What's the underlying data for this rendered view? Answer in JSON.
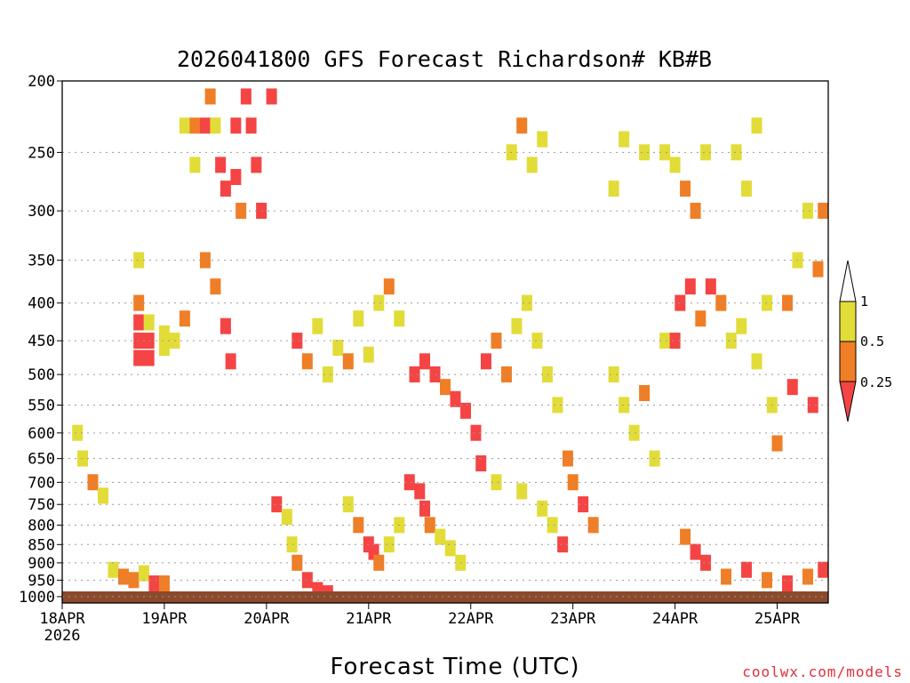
{
  "chart_data": {
    "type": "heatmap",
    "title": "2026041800 GFS Forecast Richardson# KB#B",
    "xlabel": "Forecast Time (UTC)",
    "ylabel": "",
    "credit": "coolwx.com/models",
    "x_ticks": [
      {
        "label": "18APR",
        "sub": "2026",
        "t": 0
      },
      {
        "label": "19APR",
        "t": 1
      },
      {
        "label": "20APR",
        "t": 2
      },
      {
        "label": "21APR",
        "t": 3
      },
      {
        "label": "22APR",
        "t": 4
      },
      {
        "label": "23APR",
        "t": 5
      },
      {
        "label": "24APR",
        "t": 6
      },
      {
        "label": "25APR",
        "t": 7
      }
    ],
    "xlim_days": [
      0,
      7.5
    ],
    "y_ticks": [
      200,
      250,
      300,
      350,
      400,
      450,
      500,
      550,
      600,
      650,
      700,
      750,
      800,
      850,
      900,
      950,
      1000
    ],
    "ylim_hpa": [
      200,
      1020
    ],
    "y_scale": "log-pressure",
    "grid": "dotted-horizontal",
    "legend": {
      "position": "right",
      "labels": [
        "1",
        "0.5",
        "0.25"
      ],
      "bins": [
        {
          "range": ">1",
          "color": "#ffffff"
        },
        {
          "range": "0.5-1",
          "color": "#e2dc38"
        },
        {
          "range": "0.25-0.5",
          "color": "#ef7e26"
        },
        {
          "range": "<0.25",
          "color": "#f44444"
        }
      ]
    },
    "colors": {
      "low": "#f44444",
      "mid": "#ef7e26",
      "high": "#e2dc38",
      "ground": "#8b4a2b"
    },
    "cells": [
      [
        0.75,
        350,
        "high"
      ],
      [
        0.75,
        400,
        "mid"
      ],
      [
        0.75,
        425,
        "low"
      ],
      [
        0.75,
        450,
        "low"
      ],
      [
        0.75,
        475,
        "low"
      ],
      [
        0.85,
        425,
        "high"
      ],
      [
        0.85,
        450,
        "low"
      ],
      [
        0.85,
        475,
        "low"
      ],
      [
        1.0,
        440,
        "high"
      ],
      [
        1.0,
        460,
        "high"
      ],
      [
        1.1,
        450,
        "high"
      ],
      [
        1.2,
        420,
        "mid"
      ],
      [
        1.2,
        230,
        "high"
      ],
      [
        1.3,
        230,
        "mid"
      ],
      [
        1.3,
        260,
        "high"
      ],
      [
        1.4,
        230,
        "low"
      ],
      [
        1.45,
        210,
        "mid"
      ],
      [
        1.5,
        230,
        "high"
      ],
      [
        1.55,
        260,
        "low"
      ],
      [
        1.6,
        280,
        "low"
      ],
      [
        1.7,
        230,
        "low"
      ],
      [
        1.7,
        270,
        "low"
      ],
      [
        1.75,
        300,
        "mid"
      ],
      [
        1.8,
        210,
        "low"
      ],
      [
        1.85,
        230,
        "low"
      ],
      [
        1.9,
        260,
        "low"
      ],
      [
        1.95,
        300,
        "low"
      ],
      [
        2.05,
        210,
        "low"
      ],
      [
        1.4,
        350,
        "mid"
      ],
      [
        1.5,
        380,
        "mid"
      ],
      [
        1.6,
        430,
        "low"
      ],
      [
        1.65,
        480,
        "low"
      ],
      [
        2.3,
        450,
        "low"
      ],
      [
        2.4,
        480,
        "mid"
      ],
      [
        2.5,
        430,
        "high"
      ],
      [
        2.6,
        500,
        "high"
      ],
      [
        2.7,
        460,
        "high"
      ],
      [
        2.8,
        480,
        "mid"
      ],
      [
        2.9,
        420,
        "high"
      ],
      [
        3.0,
        470,
        "high"
      ],
      [
        3.1,
        400,
        "high"
      ],
      [
        3.2,
        380,
        "mid"
      ],
      [
        3.3,
        420,
        "high"
      ],
      [
        3.45,
        500,
        "low"
      ],
      [
        3.55,
        480,
        "low"
      ],
      [
        3.65,
        500,
        "low"
      ],
      [
        3.75,
        520,
        "mid"
      ],
      [
        3.85,
        540,
        "low"
      ],
      [
        3.95,
        560,
        "low"
      ],
      [
        4.05,
        600,
        "low"
      ],
      [
        4.15,
        480,
        "low"
      ],
      [
        4.25,
        450,
        "mid"
      ],
      [
        4.35,
        500,
        "mid"
      ],
      [
        4.45,
        430,
        "high"
      ],
      [
        4.55,
        400,
        "high"
      ],
      [
        4.65,
        450,
        "high"
      ],
      [
        4.75,
        500,
        "high"
      ],
      [
        4.85,
        550,
        "high"
      ],
      [
        4.95,
        650,
        "mid"
      ],
      [
        4.4,
        250,
        "high"
      ],
      [
        4.5,
        230,
        "mid"
      ],
      [
        4.6,
        260,
        "high"
      ],
      [
        4.7,
        240,
        "high"
      ],
      [
        5.4,
        280,
        "high"
      ],
      [
        5.5,
        240,
        "high"
      ],
      [
        5.7,
        250,
        "high"
      ],
      [
        5.9,
        250,
        "high"
      ],
      [
        5.4,
        500,
        "high"
      ],
      [
        5.5,
        550,
        "high"
      ],
      [
        5.6,
        600,
        "high"
      ],
      [
        5.7,
        530,
        "mid"
      ],
      [
        5.8,
        650,
        "high"
      ],
      [
        5.9,
        450,
        "high"
      ],
      [
        6.0,
        450,
        "low"
      ],
      [
        6.05,
        400,
        "low"
      ],
      [
        6.15,
        380,
        "low"
      ],
      [
        6.25,
        420,
        "mid"
      ],
      [
        6.35,
        380,
        "low"
      ],
      [
        6.45,
        400,
        "mid"
      ],
      [
        6.55,
        450,
        "high"
      ],
      [
        6.65,
        430,
        "high"
      ],
      [
        6.8,
        480,
        "high"
      ],
      [
        6.9,
        400,
        "high"
      ],
      [
        6.0,
        260,
        "high"
      ],
      [
        6.1,
        280,
        "mid"
      ],
      [
        6.2,
        300,
        "mid"
      ],
      [
        6.3,
        250,
        "high"
      ],
      [
        6.6,
        250,
        "high"
      ],
      [
        6.7,
        280,
        "high"
      ],
      [
        6.8,
        230,
        "high"
      ],
      [
        7.1,
        400,
        "mid"
      ],
      [
        7.2,
        350,
        "high"
      ],
      [
        7.3,
        300,
        "high"
      ],
      [
        7.4,
        360,
        "mid"
      ],
      [
        7.45,
        300,
        "mid"
      ],
      [
        6.95,
        550,
        "high"
      ],
      [
        7.0,
        620,
        "mid"
      ],
      [
        7.15,
        520,
        "low"
      ],
      [
        7.35,
        550,
        "low"
      ],
      [
        0.15,
        600,
        "high"
      ],
      [
        0.2,
        650,
        "high"
      ],
      [
        0.3,
        700,
        "mid"
      ],
      [
        0.4,
        730,
        "high"
      ],
      [
        0.5,
        920,
        "high"
      ],
      [
        0.6,
        940,
        "mid"
      ],
      [
        0.7,
        950,
        "mid"
      ],
      [
        0.8,
        930,
        "high"
      ],
      [
        0.9,
        960,
        "low"
      ],
      [
        0.95,
        970,
        "low"
      ],
      [
        1.0,
        960,
        "mid"
      ],
      [
        2.1,
        750,
        "low"
      ],
      [
        2.2,
        780,
        "high"
      ],
      [
        2.25,
        850,
        "high"
      ],
      [
        2.3,
        900,
        "mid"
      ],
      [
        2.4,
        950,
        "low"
      ],
      [
        2.5,
        980,
        "low"
      ],
      [
        2.6,
        990,
        "low"
      ],
      [
        2.8,
        750,
        "high"
      ],
      [
        2.9,
        800,
        "mid"
      ],
      [
        3.0,
        850,
        "low"
      ],
      [
        3.05,
        870,
        "low"
      ],
      [
        3.1,
        900,
        "mid"
      ],
      [
        3.2,
        850,
        "high"
      ],
      [
        3.3,
        800,
        "high"
      ],
      [
        3.4,
        700,
        "low"
      ],
      [
        3.5,
        720,
        "low"
      ],
      [
        3.55,
        760,
        "low"
      ],
      [
        3.6,
        800,
        "mid"
      ],
      [
        3.7,
        830,
        "high"
      ],
      [
        3.8,
        860,
        "high"
      ],
      [
        3.9,
        900,
        "high"
      ],
      [
        4.1,
        660,
        "low"
      ],
      [
        4.25,
        700,
        "high"
      ],
      [
        4.5,
        720,
        "high"
      ],
      [
        4.7,
        760,
        "high"
      ],
      [
        4.8,
        800,
        "high"
      ],
      [
        4.9,
        850,
        "low"
      ],
      [
        5.0,
        700,
        "mid"
      ],
      [
        5.1,
        750,
        "low"
      ],
      [
        5.2,
        800,
        "mid"
      ],
      [
        6.1,
        830,
        "mid"
      ],
      [
        6.2,
        870,
        "low"
      ],
      [
        6.3,
        900,
        "low"
      ],
      [
        6.5,
        940,
        "mid"
      ],
      [
        6.7,
        920,
        "low"
      ],
      [
        6.9,
        950,
        "mid"
      ],
      [
        7.1,
        960,
        "low"
      ],
      [
        7.3,
        940,
        "mid"
      ],
      [
        7.45,
        920,
        "low"
      ]
    ]
  }
}
